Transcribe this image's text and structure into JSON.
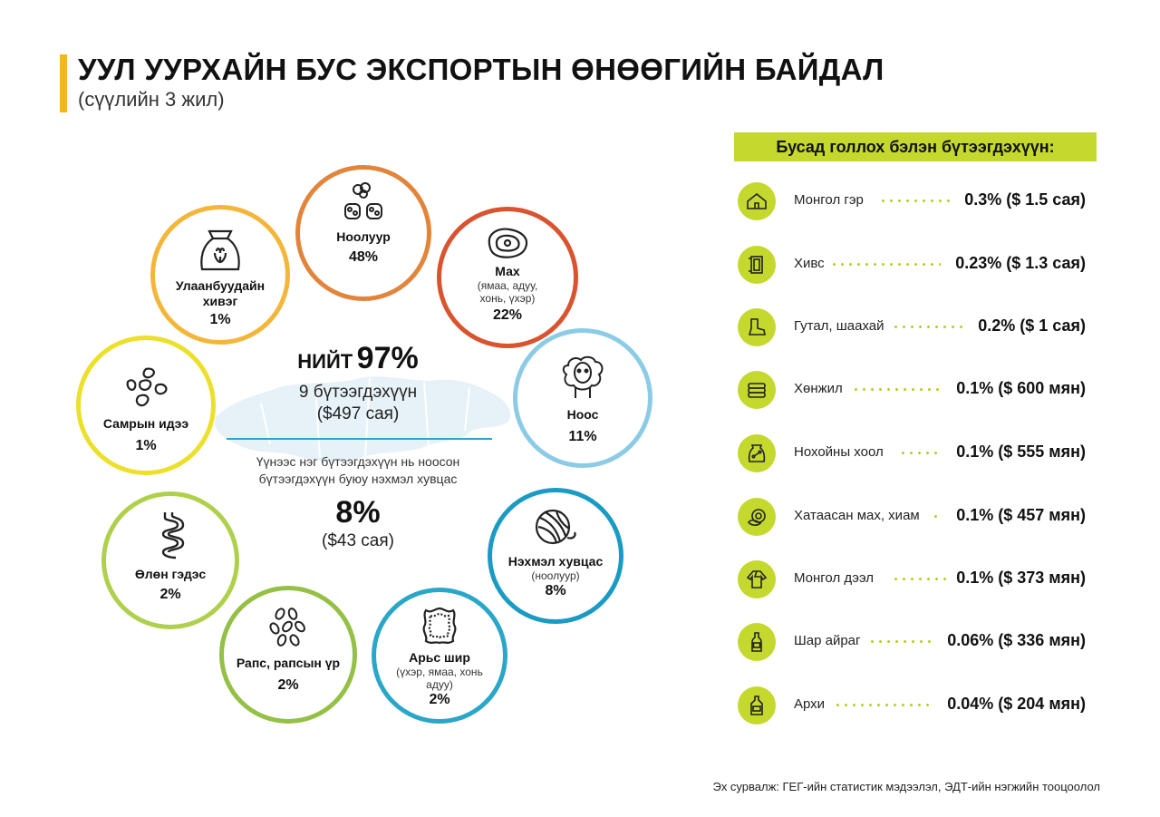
{
  "header": {
    "title": "УУЛ УУРХАЙН БУС ЭКСПОРТЫН ӨНӨӨГИЙН БАЙДАЛ",
    "subtitle": "(сүүлийн 3 жил)"
  },
  "colors": {
    "accent_yellow": "#f6b51c",
    "accent_lime": "#c5d82e",
    "cashmere": "#e2853a",
    "meat": "#d9532f",
    "wool": "#8ccbe6",
    "knitwear": "#1a9bc4",
    "leather": "#2aa6c8",
    "rapeseed": "#94c045",
    "intestines": "#aed04a",
    "legumes": "#ece02b",
    "flour": "#f4b63a"
  },
  "center": {
    "total_label": "НИЙТ",
    "total_value": "97%",
    "products": "9 бүтээгдэхүүн",
    "amount": "($497 сая)",
    "desc_line1": "Үүнээс нэг бүтээгдэхүүн нь ноосон",
    "desc_line2": "бүтээгдэхүүн буюу нэхмэл хувцас",
    "knit_pct": "8%",
    "knit_amount": "($43 сая)"
  },
  "main_products": [
    {
      "name": "Ноолуур",
      "note": "",
      "pct": "48%",
      "icon": "cashmere-icon"
    },
    {
      "name": "Мах",
      "note": "(ямаа, адуу, хонь, үхэр)",
      "pct": "22%",
      "icon": "meat-icon"
    },
    {
      "name": "Ноос",
      "note": "",
      "pct": "11%",
      "icon": "sheep-icon"
    },
    {
      "name": "Нэхмэл хувцас",
      "note": "(ноолуур)",
      "pct": "8%",
      "icon": "yarn-icon"
    },
    {
      "name": "Арьс шир",
      "note": "(үхэр, ямаа, хонь адуу)",
      "pct": "2%",
      "icon": "leather-icon"
    },
    {
      "name": "Рапс, рапсын үр",
      "note": "",
      "pct": "2%",
      "icon": "seeds-icon"
    },
    {
      "name": "Өлөн гэдэс",
      "note": "",
      "pct": "2%",
      "icon": "intestine-icon"
    },
    {
      "name": "Самрын идээ",
      "note": "",
      "pct": "1%",
      "icon": "beans-icon"
    },
    {
      "name": "Улаанбуудайн хивэг",
      "note": "",
      "pct": "1%",
      "icon": "flour-sack-icon"
    }
  ],
  "other_products": {
    "title": "Бусад голлох бэлэн бүтээгдэхүүн:",
    "items": [
      {
        "name": "Монгол гэр",
        "value": "0.3% ($ 1.5 сая)",
        "icon": "ger-icon"
      },
      {
        "name": "Хивс",
        "value": "0.23% ($ 1.3 сая)",
        "icon": "carpet-icon"
      },
      {
        "name": "Гутал, шаахай",
        "value": "0.2% ($ 1 сая)",
        "icon": "boot-icon"
      },
      {
        "name": "Хөнжил",
        "value": "0.1% ($ 600 мян)",
        "icon": "blanket-icon"
      },
      {
        "name": "Нохойны хоол",
        "value": "0.1% ($ 555 мян)",
        "icon": "dog-food-icon"
      },
      {
        "name": "Хатаасан мах, хиам",
        "value": "0.1% ($ 457 мян)",
        "icon": "sausage-icon"
      },
      {
        "name": "Монгол дээл",
        "value": "0.1% ($ 373 мян)",
        "icon": "deel-icon"
      },
      {
        "name": "Шар айраг",
        "value": "0.06% ($ 336 мян)",
        "icon": "beer-icon"
      },
      {
        "name": "Архи",
        "value": "0.04% ($ 204 мян)",
        "icon": "vodka-icon"
      }
    ]
  },
  "source": "Эх сурвалж: ГЕГ-ийн статистик мэдээлэл, ЭДТ-ийн нэгжийн тооцоолол"
}
